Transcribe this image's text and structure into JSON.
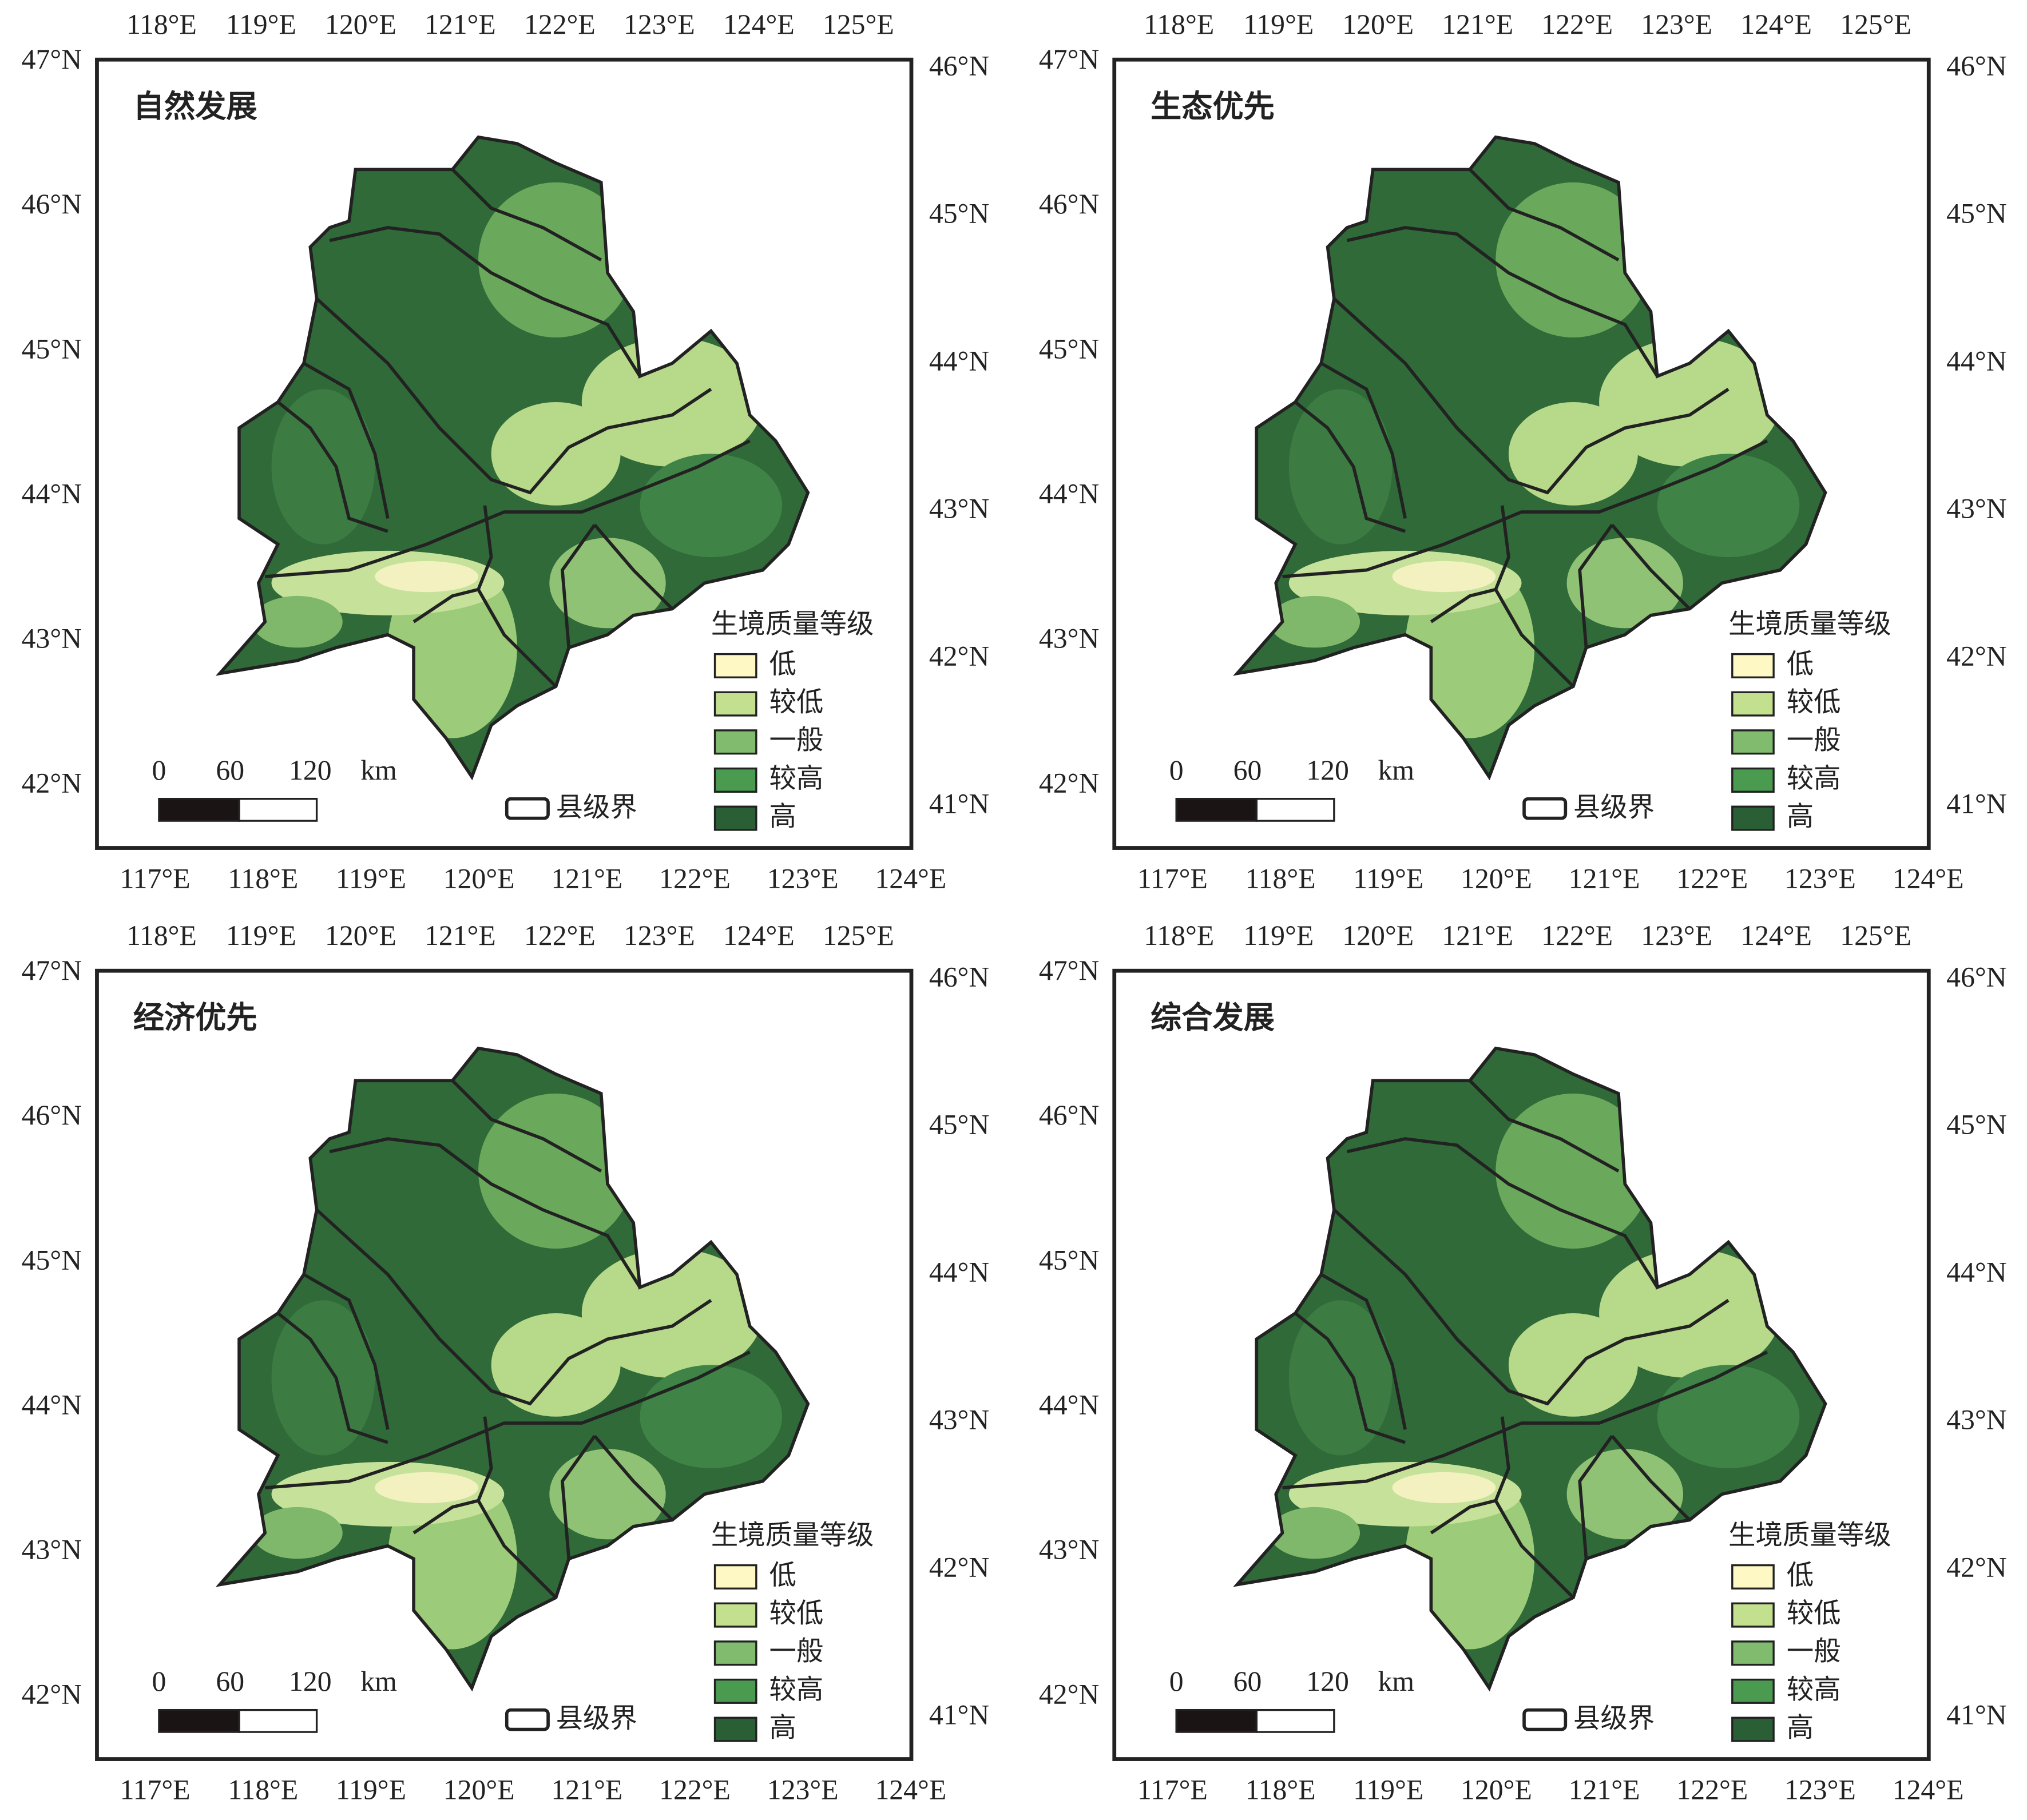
{
  "panels": [
    {
      "title": "自然发展"
    },
    {
      "title": "生态优先"
    },
    {
      "title": "经济优先"
    },
    {
      "title": "综合发展"
    }
  ],
  "axes": {
    "top_labels": [
      "118°E",
      "119°E",
      "120°E",
      "121°E",
      "122°E",
      "123°E",
      "124°E",
      "125°E"
    ],
    "bottom_labels": [
      "117°E",
      "118°E",
      "119°E",
      "120°E",
      "121°E",
      "122°E",
      "123°E",
      "124°E"
    ],
    "left_labels": [
      "47°N",
      "46°N",
      "45°N",
      "44°N",
      "43°N",
      "42°N"
    ],
    "right_labels": [
      "46°N",
      "45°N",
      "44°N",
      "43°N",
      "42°N",
      "41°N"
    ]
  },
  "legend": {
    "title": "生境质量等级",
    "items": [
      {
        "label": "低",
        "color": "#fdf8c4"
      },
      {
        "label": "较低",
        "color": "#c3e08e"
      },
      {
        "label": "一般",
        "color": "#80bb6e"
      },
      {
        "label": "较高",
        "color": "#4a9a50"
      },
      {
        "label": "高",
        "color": "#2a5e34"
      }
    ]
  },
  "scale_bar": {
    "labels": [
      "0",
      "60",
      "120"
    ],
    "unit": "km"
  },
  "boundary_label": "县级界"
}
